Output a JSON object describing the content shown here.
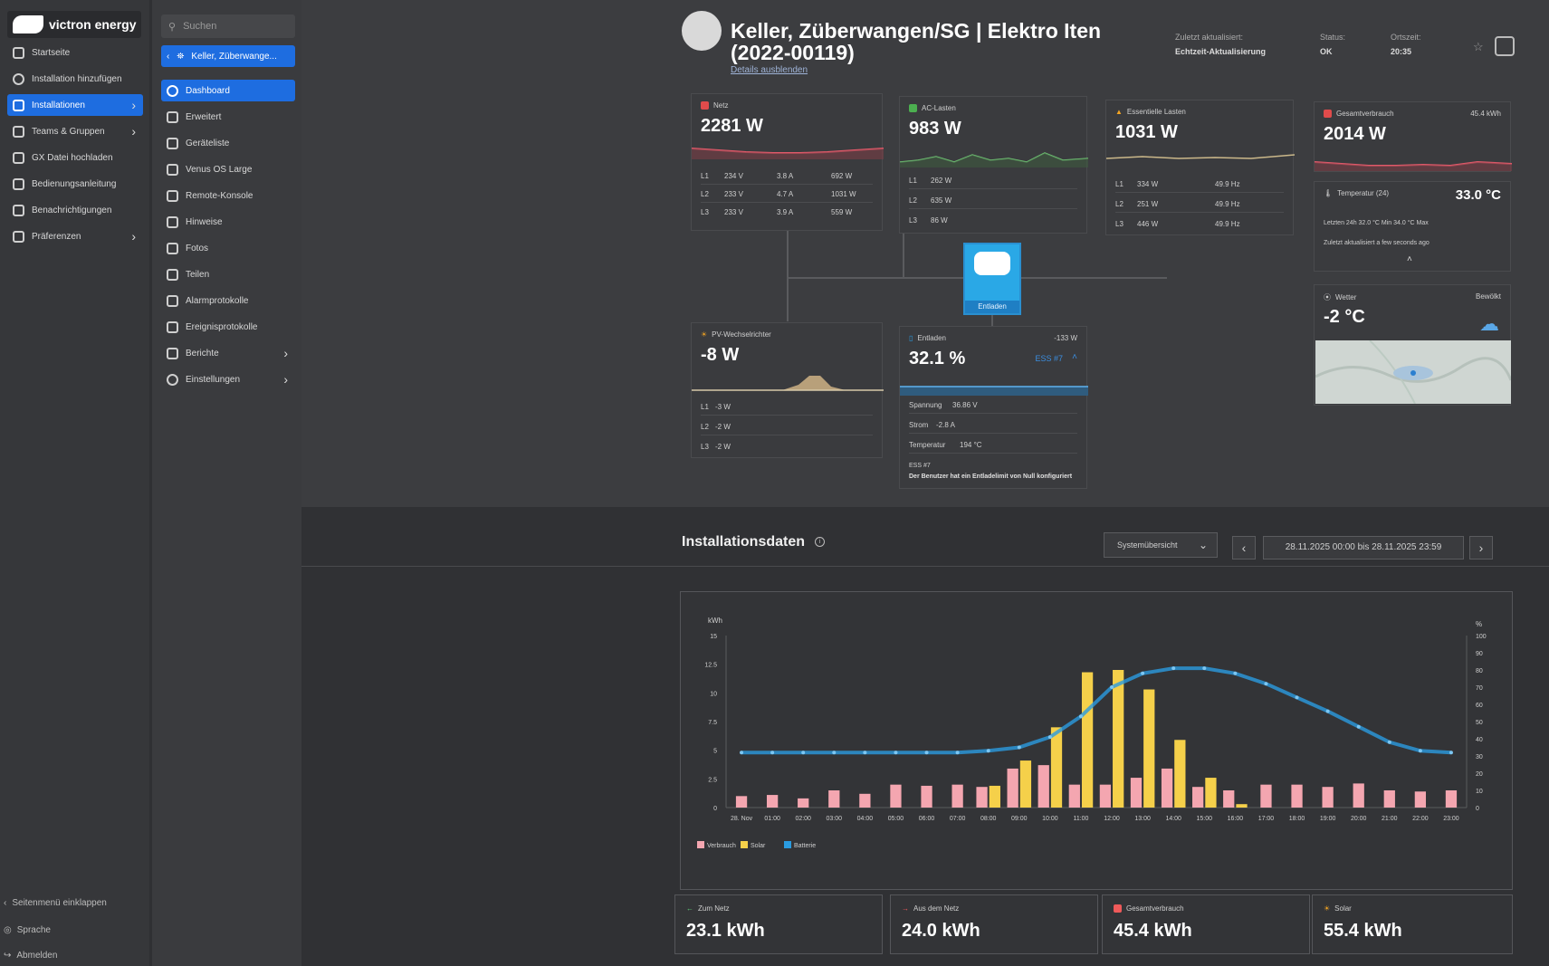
{
  "brand": {
    "name": "victron energy"
  },
  "sidebar": {
    "items": [
      {
        "label": "Startseite",
        "icon": "home-icon"
      },
      {
        "label": "Installation hinzufügen",
        "icon": "plus-circle-icon"
      },
      {
        "label": "Installationen",
        "icon": "installations-icon",
        "active": true
      },
      {
        "label": "Teams & Gruppen",
        "icon": "team-icon"
      },
      {
        "label": "GX Datei hochladen",
        "icon": "upload-icon"
      },
      {
        "label": "Bedienungsanleitung",
        "icon": "book-icon"
      },
      {
        "label": "Benachrichtigungen",
        "icon": "bell-icon"
      },
      {
        "label": "Präferenzen",
        "icon": "sliders-icon"
      }
    ],
    "collapse": "Seitenmenü einklappen",
    "language": "Sprache",
    "logout": "Abmelden"
  },
  "subnav": {
    "search_placeholder": "Suchen",
    "back_label": "Keller, Züberwange...",
    "items": [
      {
        "label": "Dashboard",
        "active": true
      },
      {
        "label": "Erweitert"
      },
      {
        "label": "Geräteliste"
      },
      {
        "label": "Venus OS Large"
      },
      {
        "label": "Remote-Konsole"
      },
      {
        "label": "Hinweise"
      },
      {
        "label": "Fotos"
      },
      {
        "label": "Teilen"
      },
      {
        "label": "Alarmprotokolle"
      },
      {
        "label": "Ereignisprotokolle"
      },
      {
        "label": "Berichte"
      },
      {
        "label": "Einstellungen"
      }
    ]
  },
  "header": {
    "title": "Keller, Züberwangen/SG | Elektro Iten (2022-00119)",
    "details_link": "Details ausblenden",
    "updated_label": "Zuletzt aktualisiert:",
    "updated_value": "Echtzeit-Aktualisierung",
    "status_label": "Status:",
    "status_value": "OK",
    "time_label": "Ortszeit:",
    "time_value": "20:35"
  },
  "cards": {
    "netz": {
      "label": "Netz",
      "value": "2281 W",
      "rows": [
        [
          "L1",
          "234 V",
          "3.8 A",
          "692 W"
        ],
        [
          "L2",
          "233 V",
          "4.7 A",
          "1031 W"
        ],
        [
          "L3",
          "233 V",
          "3.9 A",
          "559 W"
        ]
      ]
    },
    "ac": {
      "label": "AC-Lasten",
      "value": "983 W",
      "rows": [
        [
          "L1",
          "262 W"
        ],
        [
          "L2",
          "635 W"
        ],
        [
          "L3",
          "86 W"
        ]
      ]
    },
    "ess_loads": {
      "label": "Essentielle Lasten",
      "value": "1031 W",
      "rows": [
        [
          "L1",
          "334 W",
          "49.9 Hz"
        ],
        [
          "L2",
          "251 W",
          "49.9 Hz"
        ],
        [
          "L3",
          "446 W",
          "49.9 Hz"
        ]
      ]
    },
    "gesamt": {
      "label": "Gesamtverbrauch",
      "energy": "45.4 kWh",
      "value": "2014 W"
    },
    "temp": {
      "label": "Temperatur (24)",
      "value": "33.0 °C",
      "range": "Letzten 24h  32.0 °C Min     34.0 °C Max",
      "updated": "Zuletzt aktualisiert   a few seconds ago"
    },
    "weather": {
      "label": "Wetter",
      "condition": "Bewölkt",
      "value": "-2 °C"
    },
    "pv": {
      "label": "PV-Wechselrichter",
      "value": "-8 W",
      "rows": [
        [
          "L1",
          "-3 W"
        ],
        [
          "L2",
          "-2 W"
        ],
        [
          "L3",
          "-2 W"
        ]
      ]
    },
    "battery": {
      "label": "Entladen",
      "power": "-133 W",
      "value": "32.1 %",
      "ess": "ESS #7",
      "rows": [
        [
          "Spannung",
          "36.86 V"
        ],
        [
          "Strom",
          "-2.8 A"
        ],
        [
          "Temperatur",
          "194 °C"
        ]
      ],
      "note_title": "ESS #7",
      "note": "Der Benutzer hat ein Entladelimit von Null konfiguriert"
    },
    "inverter_button": "Entladen"
  },
  "install_data": {
    "title": "Installationsdaten",
    "select": "Systemübersicht",
    "range": "28.11.2025 00:00 bis 28.11.2025 23:59"
  },
  "chart_data": {
    "type": "bar",
    "title": "",
    "ylabel": "kWh",
    "y2label": "%",
    "ylim": [
      0,
      15
    ],
    "y2lim": [
      0,
      100
    ],
    "yticks": [
      "0",
      "2.5",
      "5",
      "7.5",
      "10",
      "12.5",
      "15"
    ],
    "y2ticks": [
      "0",
      "10",
      "20",
      "30",
      "40",
      "50",
      "60",
      "70",
      "80",
      "90",
      "100"
    ],
    "categories": [
      "28. Nov",
      "01:00",
      "02:00",
      "03:00",
      "04:00",
      "05:00",
      "06:00",
      "07:00",
      "08:00",
      "09:00",
      "10:00",
      "11:00",
      "12:00",
      "13:00",
      "14:00",
      "15:00",
      "16:00",
      "17:00",
      "18:00",
      "19:00",
      "20:00",
      "21:00",
      "22:00",
      "23:00"
    ],
    "series": [
      {
        "name": "Verbrauch",
        "color": "#f4a6b0",
        "values": [
          1.0,
          1.1,
          0.8,
          1.5,
          1.2,
          2.0,
          1.9,
          2.0,
          1.8,
          3.4,
          3.7,
          2.0,
          2.0,
          2.6,
          3.4,
          1.8,
          1.5,
          2.0,
          2.0,
          1.8,
          2.1,
          1.5,
          1.4,
          1.5
        ]
      },
      {
        "name": "Solar",
        "color": "#f5d04a",
        "values": [
          0,
          0,
          0,
          0,
          0,
          0,
          0,
          0,
          1.9,
          4.1,
          7.0,
          11.8,
          12.0,
          10.3,
          5.9,
          2.6,
          0.3,
          0,
          0,
          0,
          0,
          0,
          0,
          0
        ]
      },
      {
        "name": "Batterie",
        "color": "#2a9be0",
        "axis": "y2",
        "values": [
          32,
          32,
          32,
          32,
          32,
          32,
          32,
          32,
          33,
          35,
          41,
          53,
          70,
          78,
          81,
          81,
          78,
          72,
          64,
          56,
          47,
          38,
          33,
          32
        ]
      }
    ],
    "legend": "bottom-left"
  },
  "totals": [
    {
      "label": "Zum Netz",
      "value": "23.1 kWh",
      "icon": "arrow-left-icon",
      "color": "#5fd07a"
    },
    {
      "label": "Aus dem Netz",
      "value": "24.0 kWh",
      "icon": "arrow-right-icon",
      "color": "#ef5a5a"
    },
    {
      "label": "Gesamtverbrauch",
      "value": "45.4 kWh",
      "icon": "consumption-icon",
      "color": "#ef5a5a"
    },
    {
      "label": "Solar",
      "value": "55.4 kWh",
      "icon": "sun-icon",
      "color": "#f5a623"
    }
  ]
}
